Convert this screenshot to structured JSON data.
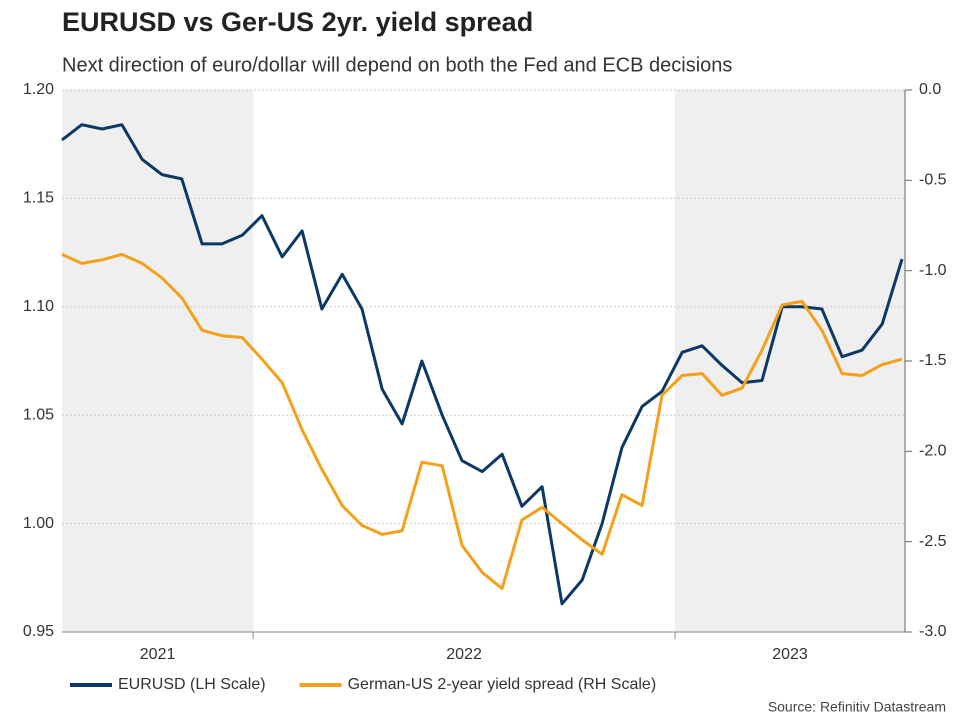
{
  "chart_data": {
    "type": "line",
    "title": "EURUSD vs Ger-US 2yr. yield spread",
    "subtitle": "Next direction of euro/dollar will depend on both the Fed and ECB decisions",
    "source": "Source: Refinitiv Datastream",
    "years": [
      "2021",
      "2022",
      "2023"
    ],
    "x": [
      2021.547,
      2021.594,
      2021.642,
      2021.689,
      2021.737,
      2021.784,
      2021.831,
      2021.879,
      2021.926,
      2021.974,
      2022.021,
      2022.069,
      2022.116,
      2022.163,
      2022.211,
      2022.258,
      2022.306,
      2022.353,
      2022.4,
      2022.448,
      2022.495,
      2022.543,
      2022.59,
      2022.637,
      2022.685,
      2022.732,
      2022.78,
      2022.827,
      2022.874,
      2022.922,
      2022.969,
      2023.017,
      2023.064,
      2023.111,
      2023.159,
      2023.206,
      2023.254,
      2023.301,
      2023.348,
      2023.396,
      2023.443,
      2023.491,
      2023.538
    ],
    "xlim": [
      2021.547,
      2023.545
    ],
    "series": [
      {
        "name": "EURUSD (LH Scale)",
        "color": "#0c3866",
        "axis": "y",
        "values": [
          1.177,
          1.184,
          1.182,
          1.184,
          1.168,
          1.161,
          1.159,
          1.129,
          1.129,
          1.133,
          1.142,
          1.123,
          1.135,
          1.099,
          1.115,
          1.099,
          1.062,
          1.046,
          1.075,
          1.05,
          1.029,
          1.024,
          1.032,
          1.008,
          1.017,
          0.963,
          0.974,
          1.0,
          1.035,
          1.054,
          1.061,
          1.079,
          1.082,
          1.073,
          1.065,
          1.066,
          1.1,
          1.1,
          1.099,
          1.077,
          1.08,
          1.092,
          1.122
        ]
      },
      {
        "name": "German-US 2-year yield spread (RH Scale)",
        "color": "#f5a01a",
        "axis": "y2",
        "values": [
          -0.91,
          -0.96,
          -0.94,
          -0.91,
          -0.96,
          -1.04,
          -1.15,
          -1.33,
          -1.36,
          -1.37,
          -1.49,
          -1.62,
          -1.88,
          -2.1,
          -2.3,
          -2.41,
          -2.46,
          -2.44,
          -2.06,
          -2.08,
          -2.52,
          -2.67,
          -2.76,
          -2.38,
          -2.31,
          -2.4,
          -2.49,
          -2.57,
          -2.24,
          -2.3,
          -1.69,
          -1.58,
          -1.57,
          -1.69,
          -1.65,
          -1.44,
          -1.19,
          -1.17,
          -1.33,
          -1.57,
          -1.58,
          -1.52,
          -1.49
        ]
      }
    ],
    "ylim": [
      0.95,
      1.2
    ],
    "yticks": [
      0.95,
      {
        "value": 1.0,
        "label": "1.00"
      },
      1.05,
      {
        "value": 1.1,
        "label": "1.10"
      },
      1.15,
      {
        "value": 1.2,
        "label": "1.20"
      }
    ],
    "y2lim": [
      -3.0,
      0.0
    ],
    "y2ticks": [
      {
        "value": -3.0,
        "label": "-3.0"
      },
      -2.5,
      {
        "value": -2.0,
        "label": "-2.0"
      },
      -1.5,
      {
        "value": -1.0,
        "label": "-1.0"
      },
      -0.5,
      {
        "value": 0.0,
        "label": "0.0"
      }
    ],
    "grid": true,
    "legend": "bottom"
  }
}
